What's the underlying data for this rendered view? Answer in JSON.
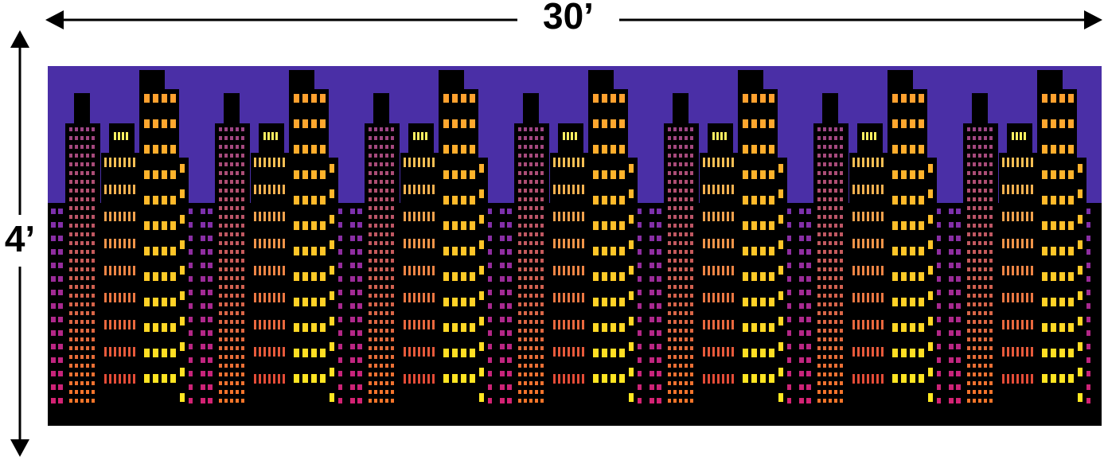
{
  "dimensions": {
    "width_label": "30’",
    "height_label": "4’"
  }
}
